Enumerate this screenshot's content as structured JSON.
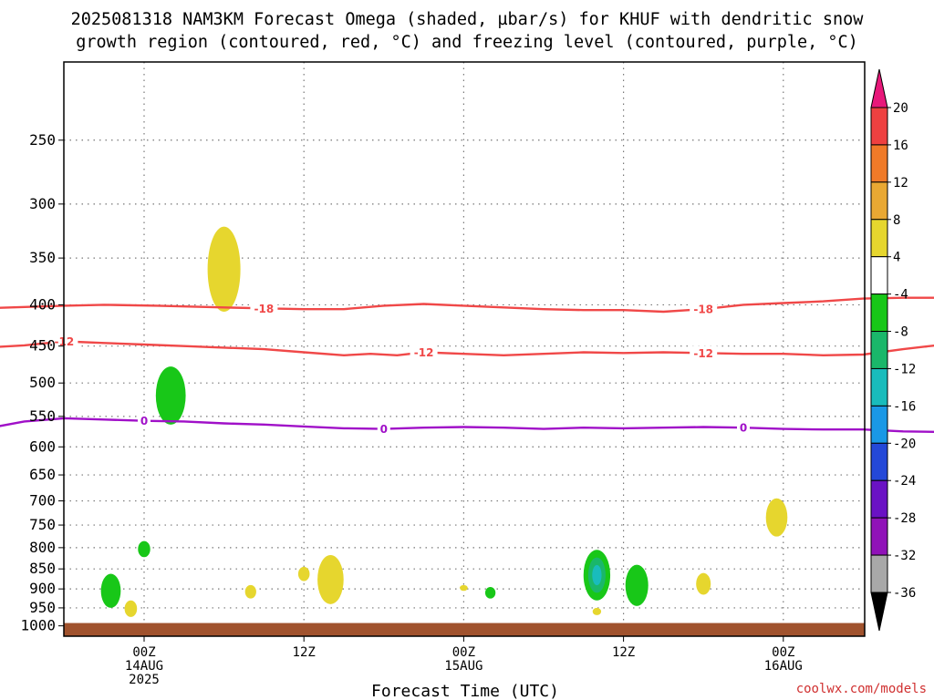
{
  "chart_data": {
    "type": "heatmap",
    "title_line1": "2025081318 NAM3KM Forecast Omega (shaded, µbar/s) for KHUF with dendritic snow",
    "title_line2": "growth region (contoured, red, °C) and freezing level (contoured, purple, °C)",
    "xlabel": "Forecast Time (UTC)",
    "ylabel": "",
    "credit": "coolwx.com/models",
    "y_axis": {
      "scale": "log",
      "ylim": [
        200,
        1030
      ],
      "ticks": [
        250,
        300,
        350,
        400,
        450,
        500,
        550,
        600,
        650,
        700,
        750,
        800,
        850,
        900,
        950,
        1000
      ],
      "tick_labels": [
        "250",
        "300",
        "350",
        "400",
        "450",
        "500",
        "550",
        "600",
        "650",
        "700",
        "750",
        "800",
        "850",
        "900",
        "950",
        "1000"
      ]
    },
    "x_axis": {
      "xlim": [
        -15,
        126
      ],
      "unit": "hours after 2025081400",
      "ticks": [
        {
          "hour": 0,
          "line1": "00Z",
          "line2": "14AUG",
          "line3": "2025"
        },
        {
          "hour": 12,
          "line1": "12Z",
          "line2": "",
          "line3": ""
        },
        {
          "hour": 24,
          "line1": "00Z",
          "line2": "15AUG",
          "line3": ""
        },
        {
          "hour": 36,
          "line1": "12Z",
          "line2": "",
          "line3": ""
        },
        {
          "hour": 48,
          "line1": "00Z",
          "line2": "16AUG",
          "line3": ""
        }
      ]
    },
    "grid": true,
    "colorbar": {
      "position": "right",
      "labels": [
        "20",
        "16",
        "12",
        "8",
        "4",
        "-4",
        "-8",
        "-12",
        "-16",
        "-20",
        "-24",
        "-28",
        "-32",
        "-36"
      ],
      "colors": [
        "#e8187a",
        "#ee4040",
        "#f07a28",
        "#e9a833",
        "#e6d62e",
        "#ffffff",
        "#18c718",
        "#1ab76a",
        "#19bcbc",
        "#1a98e6",
        "#2448d8",
        "#6a12c4",
        "#9012b8",
        "#a8a8a8",
        "#000000"
      ]
    },
    "contours": [
      {
        "name": "-18",
        "color": "#f04848",
        "points": [
          [
            -15,
            404
          ],
          [
            -12,
            404
          ],
          [
            -6,
            401
          ],
          [
            -3,
            400
          ],
          [
            1,
            401
          ],
          [
            6,
            403
          ],
          [
            9,
            404
          ],
          [
            12,
            405
          ],
          [
            15,
            405
          ],
          [
            18,
            401
          ],
          [
            21,
            399
          ],
          [
            24,
            401
          ],
          [
            30,
            405
          ],
          [
            33,
            406
          ],
          [
            36,
            406
          ],
          [
            39,
            408
          ],
          [
            42,
            405
          ],
          [
            45,
            400
          ],
          [
            48,
            398
          ],
          [
            51,
            396
          ],
          [
            54,
            393
          ],
          [
            57,
            392
          ],
          [
            60,
            392
          ],
          [
            63,
            395
          ],
          [
            66,
            398
          ],
          [
            68,
            401
          ],
          [
            72,
            399
          ],
          [
            75,
            399
          ],
          [
            78,
            401
          ],
          [
            81,
            399
          ],
          [
            84,
            398
          ],
          [
            87,
            398
          ]
        ]
      },
      {
        "name": "-12",
        "color": "#f04848",
        "points": [
          [
            -15,
            454
          ],
          [
            -12,
            452
          ],
          [
            -9,
            449
          ],
          [
            -6,
            444
          ],
          [
            -3,
            446
          ],
          [
            0,
            448
          ],
          [
            3,
            450
          ],
          [
            6,
            452
          ],
          [
            9,
            454
          ],
          [
            12,
            458
          ],
          [
            15,
            462
          ],
          [
            17,
            460
          ],
          [
            19,
            462
          ],
          [
            21,
            458
          ],
          [
            24,
            460
          ],
          [
            27,
            462
          ],
          [
            30,
            460
          ],
          [
            33,
            458
          ],
          [
            36,
            459
          ],
          [
            39,
            458
          ],
          [
            42,
            459
          ],
          [
            45,
            460
          ],
          [
            48,
            460
          ],
          [
            51,
            462
          ],
          [
            54,
            461
          ],
          [
            57,
            454
          ],
          [
            60,
            448
          ],
          [
            63,
            452
          ],
          [
            66,
            452
          ],
          [
            69,
            450
          ],
          [
            72,
            453
          ],
          [
            75,
            455
          ],
          [
            78,
            458
          ],
          [
            81,
            452
          ],
          [
            84,
            453
          ],
          [
            87,
            444
          ]
        ]
      },
      {
        "name": "0",
        "color": "#a010c8",
        "points": [
          [
            -15,
            578
          ],
          [
            -12,
            570
          ],
          [
            -9,
            558
          ],
          [
            -6,
            553
          ],
          [
            -3,
            555
          ],
          [
            0,
            557
          ],
          [
            3,
            558
          ],
          [
            6,
            561
          ],
          [
            9,
            563
          ],
          [
            12,
            566
          ],
          [
            15,
            569
          ],
          [
            18,
            570
          ],
          [
            21,
            568
          ],
          [
            24,
            567
          ],
          [
            27,
            568
          ],
          [
            30,
            570
          ],
          [
            33,
            568
          ],
          [
            36,
            569
          ],
          [
            39,
            568
          ],
          [
            42,
            567
          ],
          [
            45,
            568
          ],
          [
            48,
            570
          ],
          [
            51,
            571
          ],
          [
            54,
            571
          ],
          [
            57,
            574
          ],
          [
            60,
            575
          ],
          [
            63,
            576
          ],
          [
            66,
            577
          ],
          [
            69,
            578
          ],
          [
            72,
            577
          ],
          [
            75,
            574
          ],
          [
            78,
            570
          ],
          [
            81,
            570
          ],
          [
            84,
            578
          ],
          [
            87,
            582
          ],
          [
            89,
            584
          ]
        ]
      }
    ],
    "omega_blobs": [
      {
        "value": 4,
        "color": "#e6d62e",
        "t": 6.0,
        "p_top": 320,
        "p_bot": 408
      },
      {
        "value": -4,
        "color": "#18c718",
        "t": 2.0,
        "p_top": 477,
        "p_bot": 563
      },
      {
        "value": -4,
        "color": "#18c718",
        "t": 0.0,
        "p_top": 785,
        "p_bot": 822
      },
      {
        "value": -4,
        "color": "#18c718",
        "t": -2.5,
        "p_top": 862,
        "p_bot": 950
      },
      {
        "value": 4,
        "color": "#e6d62e",
        "t": -1.0,
        "p_top": 930,
        "p_bot": 975
      },
      {
        "value": 4,
        "color": "#e6d62e",
        "t": 8.0,
        "p_top": 890,
        "p_bot": 925
      },
      {
        "value": 4,
        "color": "#e6d62e",
        "t": 12.0,
        "p_top": 845,
        "p_bot": 880
      },
      {
        "value": 4,
        "color": "#e6d62e",
        "t": 14.0,
        "p_top": 817,
        "p_bot": 940
      },
      {
        "value": 4,
        "color": "#e6d62e",
        "t": 24.0,
        "p_top": 890,
        "p_bot": 905
      },
      {
        "value": -4,
        "color": "#18c718",
        "t": 26.0,
        "p_top": 895,
        "p_bot": 925
      },
      {
        "value": -8,
        "color": "#18c718",
        "t": 34.0,
        "p_top": 805,
        "p_bot": 930
      },
      {
        "value": -4,
        "color": "#18c718",
        "t": 37.0,
        "p_top": 840,
        "p_bot": 945
      },
      {
        "value": 4,
        "color": "#e6d62e",
        "t": 34.0,
        "p_top": 950,
        "p_bot": 970
      },
      {
        "value": 4,
        "color": "#e6d62e",
        "t": 42.0,
        "p_top": 860,
        "p_bot": 915
      },
      {
        "value": 4,
        "color": "#e6d62e",
        "t": 47.5,
        "p_top": 695,
        "p_bot": 775
      }
    ],
    "terrain_color": "#a0522d"
  }
}
